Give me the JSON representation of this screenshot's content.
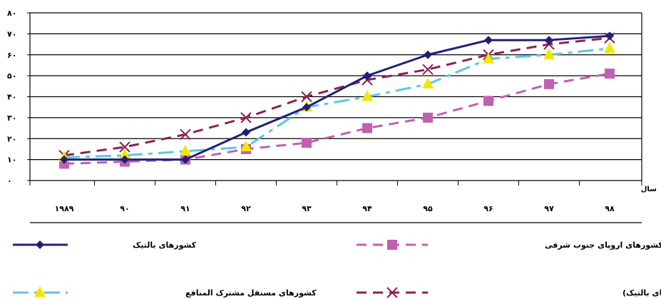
{
  "chart_data": {
    "type": "line",
    "x": [
      "۱۹۸۹",
      "۹۰",
      "۹۱",
      "۹۲",
      "۹۳",
      "۹۴",
      "۹۵",
      "۹۶",
      "۹۷",
      "۹۸"
    ],
    "y_ticks": [
      "۰",
      "۱۰",
      "۲۰",
      "۳۰",
      "۴۰",
      "۵۰",
      "۶۰",
      "۷۰",
      "۸۰"
    ],
    "ylim": [
      0,
      80
    ],
    "xlabel": "سال",
    "ylabel": "",
    "grid": true,
    "legend_position": "bottom",
    "series": [
      {
        "name": "کشورهای بالتیک",
        "color": "#1f1f7a",
        "dash": "solid",
        "marker": "diamond",
        "values": [
          10,
          10,
          10,
          23,
          35,
          50,
          60,
          67,
          67,
          69
        ]
      },
      {
        "name": "سایر کشورهای اروپای جنوب شرقی",
        "color": "#c060b0",
        "dash": "dashed",
        "marker": "square",
        "values": [
          8,
          9,
          10,
          15,
          18,
          25,
          30,
          38,
          46,
          51
        ]
      },
      {
        "name": "کشورهای مستقل مشترک المنافع",
        "color": "#5bc8e0",
        "dash": "dashdot",
        "marker": "triangle",
        "values": [
          11,
          12,
          14,
          16,
          35,
          40,
          46,
          58,
          60,
          63
        ]
      },
      {
        "name": "کشورهای نزدیک به اتحادیه اروپا (بجز کشورهای بالتیک)",
        "color": "#8b2252",
        "dash": "dashed",
        "marker": "x",
        "values": [
          12,
          16,
          22,
          30,
          40,
          48,
          53,
          60,
          65,
          68
        ]
      }
    ]
  }
}
